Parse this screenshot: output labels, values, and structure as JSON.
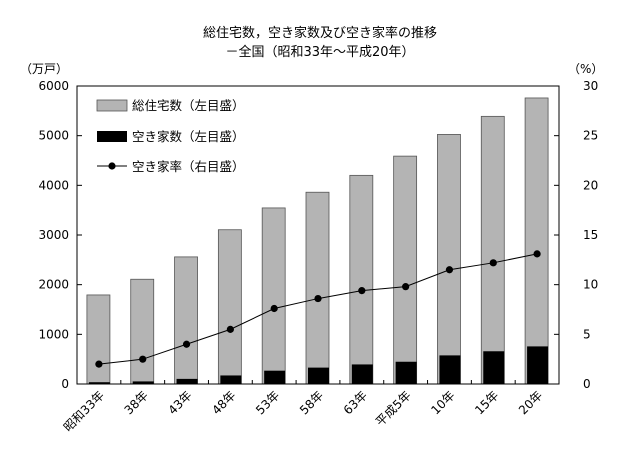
{
  "chart_data": {
    "type": "bar",
    "title": "総住宅数，空き家数及び空き家率の推移",
    "subtitle": "－全国（昭和33年～平成20年）",
    "ylabel_left": "（万戸）",
    "ylabel_right": "（%）",
    "categories": [
      "昭和33年",
      "38年",
      "43年",
      "48年",
      "53年",
      "58年",
      "63年",
      "平成5年",
      "10年",
      "15年",
      "20年"
    ],
    "left_ylim": [
      0,
      6000
    ],
    "left_ticks": [
      "0",
      "1000",
      "2000",
      "3000",
      "4000",
      "5000",
      "6000"
    ],
    "right_ylim": [
      0,
      30
    ],
    "right_ticks": [
      "0",
      "5",
      "10",
      "15",
      "20",
      "25",
      "30"
    ],
    "series": [
      {
        "name": "総住宅数（左目盛）",
        "kind": "bar",
        "color": "#b4b4b4",
        "values": [
          1793,
          2109,
          2559,
          3106,
          3545,
          3861,
          4201,
          4588,
          5025,
          5389,
          5759
        ]
      },
      {
        "name": "空き家数（左目盛）",
        "kind": "bar",
        "color": "#000000",
        "values": [
          36,
          52,
          103,
          172,
          268,
          330,
          394,
          448,
          576,
          659,
          757
        ]
      },
      {
        "name": "空き家率（右目盛）",
        "kind": "line",
        "color": "#000000",
        "values": [
          2.0,
          2.5,
          4.0,
          5.5,
          7.6,
          8.6,
          9.4,
          9.8,
          11.5,
          12.2,
          13.1
        ]
      }
    ],
    "legend_position": "top-left inside",
    "grid": false
  }
}
